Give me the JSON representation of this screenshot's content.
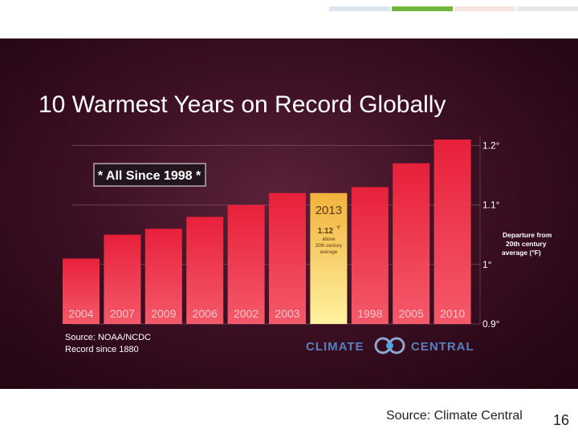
{
  "header_bar": {
    "colors": [
      "#dbe6ee",
      "#73b43c",
      "#f5e7df",
      "#e8e8e8"
    ]
  },
  "chart_data": {
    "type": "bar",
    "title": "10 Warmest Years on Record Globally",
    "callout": "* All Since 1998 *",
    "categories": [
      "2004",
      "2007",
      "2009",
      "2006",
      "2002",
      "2003",
      "2013",
      "1998",
      "2005",
      "2010"
    ],
    "values": [
      1.01,
      1.05,
      1.06,
      1.08,
      1.1,
      1.12,
      1.12,
      1.13,
      1.17,
      1.21
    ],
    "highlight": {
      "year": "2013",
      "value_text": "1.12",
      "unit": "°F",
      "note_line1": "above",
      "note_line2": "20th century",
      "note_line3": "average"
    },
    "ylim": [
      0.9,
      1.21
    ],
    "yticks": [
      {
        "value": 0.9,
        "label": "0.9°"
      },
      {
        "value": 1.0,
        "label": "1°"
      },
      {
        "value": 1.1,
        "label": "1.1°"
      },
      {
        "value": 1.2,
        "label": "1.2°"
      }
    ],
    "ylabel_lines": [
      "Departure from",
      "20th century",
      "average (°F)"
    ],
    "source_lines": [
      "Source: NOAA/NCDC",
      "Record since 1880"
    ],
    "logo": {
      "left": "CLIMATE",
      "right": "CENTRAL"
    },
    "colors": {
      "bar": "#e8203a",
      "bar_light": "#f45a6a",
      "highlight_top": "#f2b23c",
      "highlight_bottom": "#fff2a0",
      "year_label": "#f8c6c9",
      "highlight_text": "#5a3a10",
      "logo": "#5a7fc0"
    }
  },
  "footer": {
    "source": "Source: Climate Central",
    "page_number": "16"
  }
}
